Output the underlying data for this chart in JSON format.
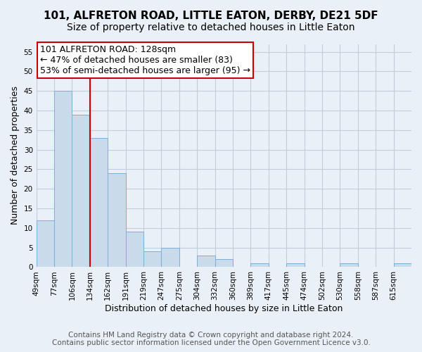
{
  "title": "101, ALFRETON ROAD, LITTLE EATON, DERBY, DE21 5DF",
  "subtitle": "Size of property relative to detached houses in Little Eaton",
  "xlabel": "Distribution of detached houses by size in Little Eaton",
  "ylabel": "Number of detached properties",
  "bar_values": [
    12,
    45,
    39,
    33,
    24,
    9,
    4,
    5,
    0,
    3,
    2,
    0,
    1,
    0,
    1,
    0,
    0,
    1,
    0,
    0,
    1
  ],
  "tick_labels": [
    "49sqm",
    "77sqm",
    "106sqm",
    "134sqm",
    "162sqm",
    "191sqm",
    "219sqm",
    "247sqm",
    "275sqm",
    "304sqm",
    "332sqm",
    "360sqm",
    "389sqm",
    "417sqm",
    "445sqm",
    "474sqm",
    "502sqm",
    "530sqm",
    "558sqm",
    "587sqm",
    "615sqm"
  ],
  "bar_color": "#c9daea",
  "bar_edge_color": "#7bafd4",
  "grid_color": "#c0cedc",
  "background_color": "#eaf0f7",
  "vline_bin": 3,
  "vline_color": "#cc0000",
  "annotation_title": "101 ALFRETON ROAD: 128sqm",
  "annotation_line1": "← 47% of detached houses are smaller (83)",
  "annotation_line2": "53% of semi-detached houses are larger (95) →",
  "annotation_box_color": "#ffffff",
  "annotation_box_edge": "#cc0000",
  "ylim": [
    0,
    57
  ],
  "yticks": [
    0,
    5,
    10,
    15,
    20,
    25,
    30,
    35,
    40,
    45,
    50,
    55
  ],
  "footer_line1": "Contains HM Land Registry data © Crown copyright and database right 2024.",
  "footer_line2": "Contains public sector information licensed under the Open Government Licence v3.0.",
  "title_fontsize": 11,
  "subtitle_fontsize": 10,
  "axis_label_fontsize": 9,
  "tick_fontsize": 7.5,
  "annotation_fontsize": 9,
  "footer_fontsize": 7.5
}
